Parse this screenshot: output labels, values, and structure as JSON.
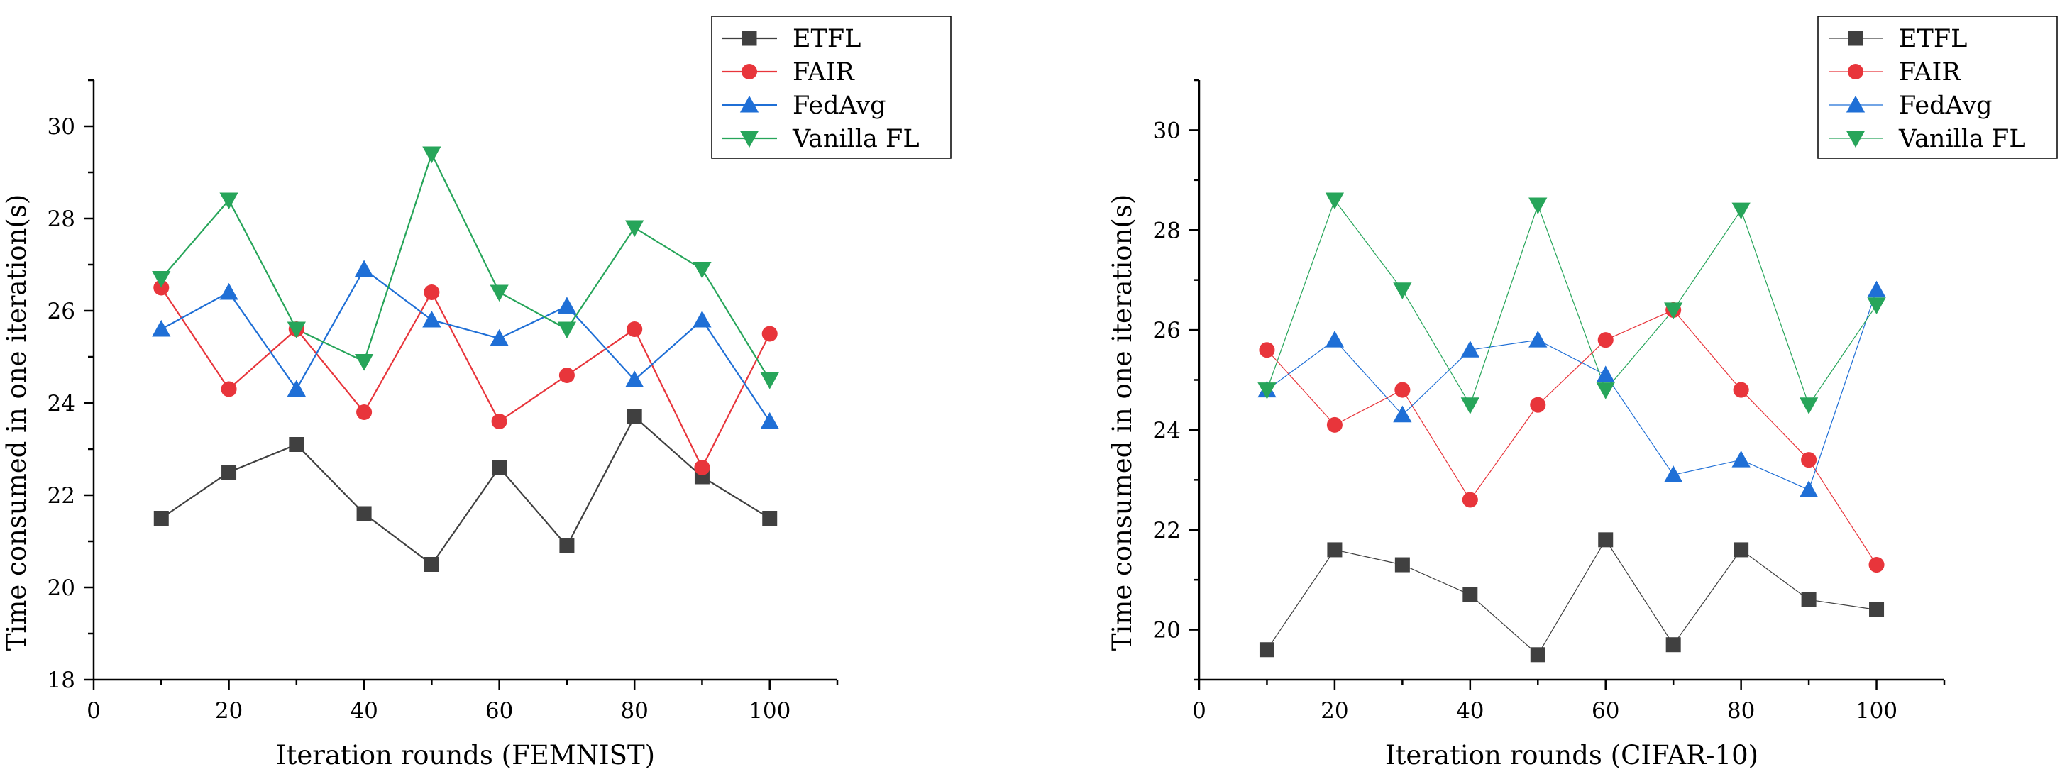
{
  "chart_data": [
    {
      "type": "line",
      "title": "",
      "xlabel": "Iteration rounds (FEMNIST)",
      "ylabel": "Time consumed in one iteration(s)",
      "xlim": [
        0,
        110
      ],
      "ylim": [
        18,
        31
      ],
      "x_ticks": [
        "0",
        "20",
        "40",
        "60",
        "80",
        "100"
      ],
      "y_ticks": [
        "18",
        "20",
        "22",
        "24",
        "26",
        "28",
        "30"
      ],
      "x": [
        10,
        20,
        30,
        40,
        50,
        60,
        70,
        80,
        90,
        100
      ],
      "grid": false,
      "legend_position": "top-right",
      "series": [
        {
          "name": "ETFL",
          "color": "#404040",
          "marker": "square",
          "values": [
            21.5,
            22.5,
            23.1,
            21.6,
            20.5,
            22.6,
            20.9,
            23.7,
            22.4,
            21.5
          ]
        },
        {
          "name": "FAIR",
          "color": "#e8353b",
          "marker": "circle",
          "values": [
            26.5,
            24.3,
            25.6,
            23.8,
            26.4,
            23.6,
            24.6,
            25.6,
            22.6,
            25.5
          ]
        },
        {
          "name": "FedAvg",
          "color": "#1f6fd6",
          "marker": "triangle-up",
          "values": [
            25.6,
            26.4,
            24.3,
            26.9,
            25.8,
            25.4,
            26.1,
            24.5,
            25.8,
            23.6
          ]
        },
        {
          "name": "Vanilla FL",
          "color": "#27a55a",
          "marker": "triangle-down",
          "values": [
            26.7,
            28.4,
            25.6,
            24.9,
            29.4,
            26.4,
            25.6,
            27.8,
            26.9,
            24.5
          ]
        }
      ]
    },
    {
      "type": "line",
      "title": "",
      "xlabel": "Iteration rounds (CIFAR-10)",
      "ylabel": "Time consumed in one iteration(s)",
      "xlim": [
        0,
        110
      ],
      "ylim": [
        19,
        31
      ],
      "x_ticks": [
        "0",
        "20",
        "40",
        "60",
        "80",
        "100"
      ],
      "y_ticks": [
        "20",
        "22",
        "24",
        "26",
        "28",
        "30"
      ],
      "x": [
        10,
        20,
        30,
        40,
        50,
        60,
        70,
        80,
        90,
        100
      ],
      "grid": false,
      "legend_position": "top-right",
      "series": [
        {
          "name": "ETFL",
          "color": "#404040",
          "marker": "square",
          "values": [
            19.6,
            21.6,
            21.3,
            20.7,
            19.5,
            21.8,
            19.7,
            21.6,
            20.6,
            20.4
          ]
        },
        {
          "name": "FAIR",
          "color": "#e8353b",
          "marker": "circle",
          "values": [
            25.6,
            24.1,
            24.8,
            22.6,
            24.5,
            25.8,
            26.4,
            24.8,
            23.4,
            21.3
          ]
        },
        {
          "name": "FedAvg",
          "color": "#1f6fd6",
          "marker": "triangle-up",
          "values": [
            24.8,
            25.8,
            24.3,
            25.6,
            25.8,
            25.1,
            23.1,
            23.4,
            22.8,
            26.8
          ]
        },
        {
          "name": "Vanilla FL",
          "color": "#27a55a",
          "marker": "triangle-down",
          "values": [
            24.8,
            28.6,
            26.8,
            24.5,
            28.5,
            24.8,
            26.4,
            28.4,
            24.5,
            26.5
          ]
        }
      ]
    }
  ]
}
